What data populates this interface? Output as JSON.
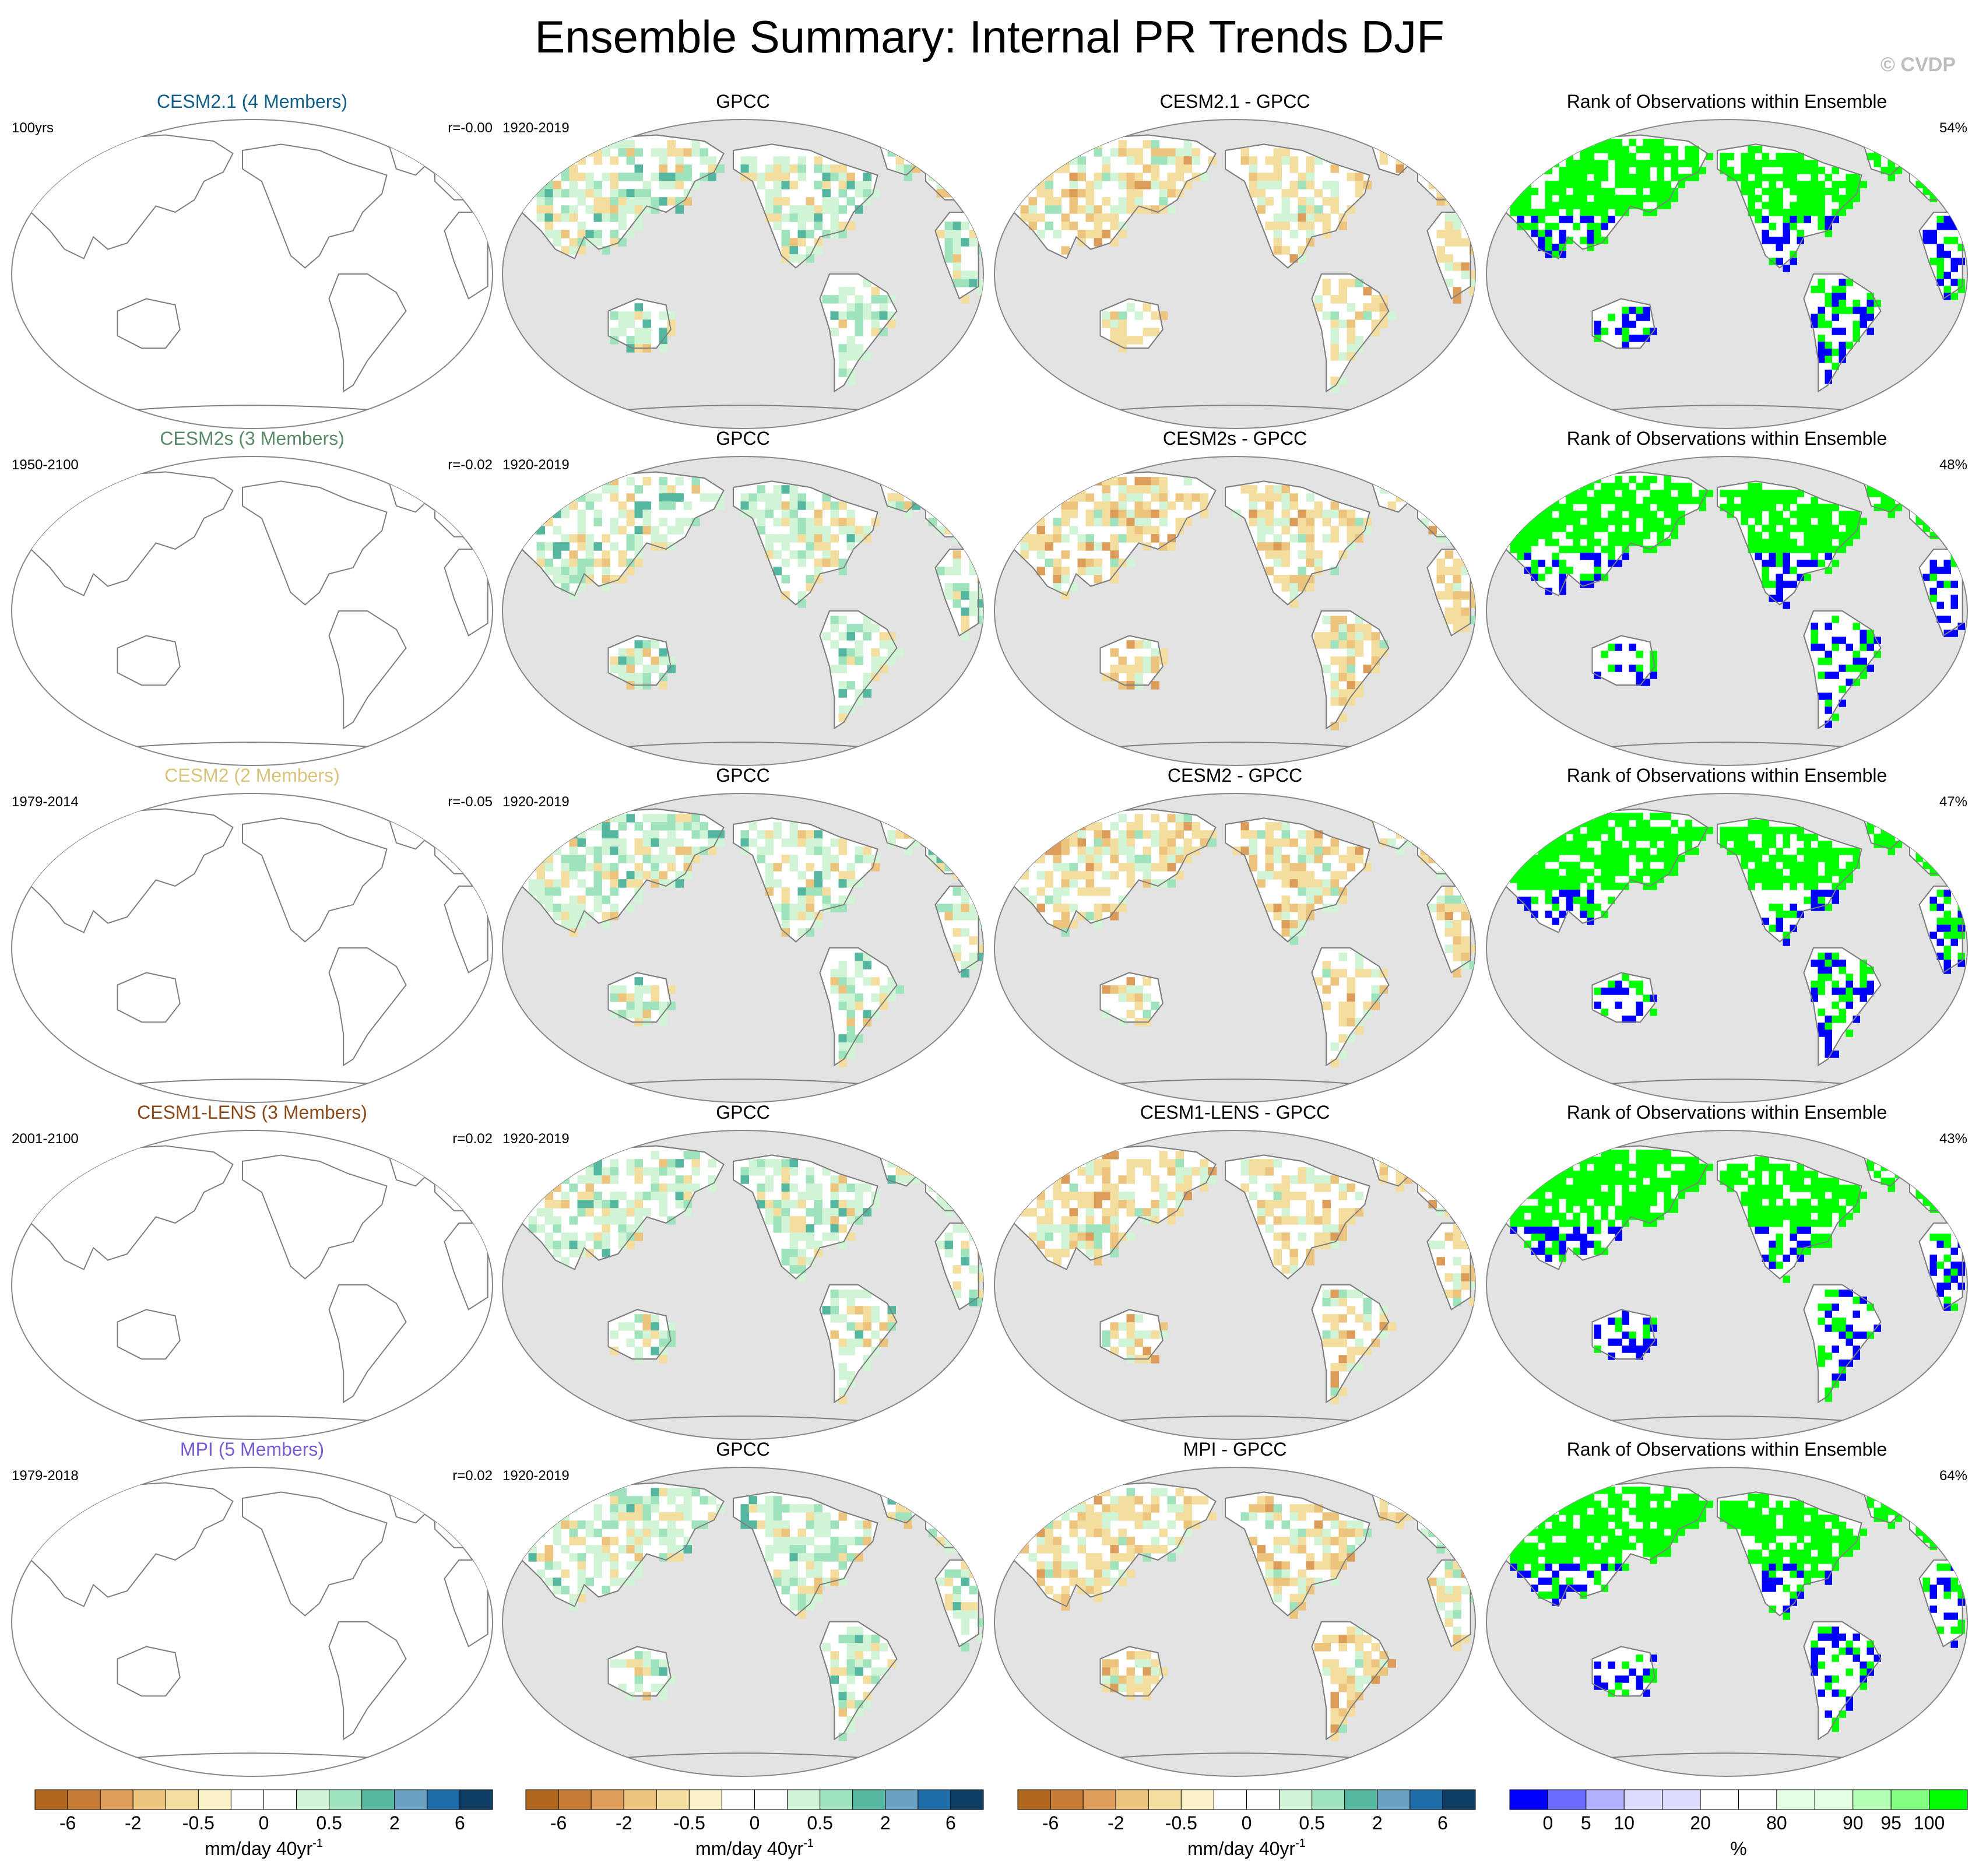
{
  "title": "Ensemble Summary: Internal PR Trends DJF",
  "watermark": "© CVDP",
  "colors": {
    "ocean_obs": "#e3e3e3",
    "coast": "#7f7f7f",
    "rank_low": "#0000ff",
    "rank_high": "#00ff00",
    "dry": "#c8873a",
    "wet": "#4aa88a"
  },
  "rows": [
    {
      "model_title": "CESM2.1 (4 Members)",
      "model_color": "#0e5f8a",
      "model_left": "100yrs",
      "model_right": "r=-0.00",
      "obs_title": "GPCC",
      "obs_left": "1920-2019",
      "diff_title": "CESM2.1 - GPCC",
      "rank_title": "Rank of Observations within Ensemble",
      "rank_right": "54%"
    },
    {
      "model_title": "CESM2s (3 Members)",
      "model_color": "#5a8a6a",
      "model_left": "1950-2100",
      "model_right": "r=-0.02",
      "obs_title": "GPCC",
      "obs_left": "1920-2019",
      "diff_title": "CESM2s - GPCC",
      "rank_title": "Rank of Observations within Ensemble",
      "rank_right": "48%"
    },
    {
      "model_title": "CESM2 (2 Members)",
      "model_color": "#d8c47a",
      "model_left": "1979-2014",
      "model_right": "r=-0.05",
      "obs_title": "GPCC",
      "obs_left": "1920-2019",
      "diff_title": "CESM2 - GPCC",
      "rank_title": "Rank of Observations within Ensemble",
      "rank_right": "47%"
    },
    {
      "model_title": "CESM1-LENS (3 Members)",
      "model_color": "#8a4a1a",
      "model_left": "2001-2100",
      "model_right": "r=0.02",
      "obs_title": "GPCC",
      "obs_left": "1920-2019",
      "diff_title": "CESM1-LENS - GPCC",
      "rank_title": "Rank of Observations within Ensemble",
      "rank_right": "43%"
    },
    {
      "model_title": "MPI (5 Members)",
      "model_color": "#7a5ad0",
      "model_left": "1979-2018",
      "model_right": "r=0.02",
      "obs_title": "GPCC",
      "obs_left": "1920-2019",
      "diff_title": "MPI - GPCC",
      "rank_title": "Rank of Observations within Ensemble",
      "rank_right": "64%"
    }
  ],
  "colorbars": [
    {
      "colors": [
        "#b0671e",
        "#c57c34",
        "#dc9c5a",
        "#ecc47e",
        "#f3dea0",
        "#fbf1c6",
        "#ffffff",
        "#ffffff",
        "#d2f4d6",
        "#9fe3bc",
        "#55b7a0",
        "#6aa1c2",
        "#1f6da8",
        "#0e3d63"
      ],
      "tick_labels": [
        "-6",
        "-2",
        "-0.5",
        "0",
        "0.5",
        "2",
        "6"
      ],
      "tick_boundaries": [
        1,
        3,
        5,
        7,
        9,
        11,
        13
      ],
      "unit_text": "mm/day 40yr",
      "unit_sup": "-1"
    },
    {
      "colors": [
        "#b0671e",
        "#c57c34",
        "#dc9c5a",
        "#ecc47e",
        "#f3dea0",
        "#fbf1c6",
        "#ffffff",
        "#ffffff",
        "#d2f4d6",
        "#9fe3bc",
        "#55b7a0",
        "#6aa1c2",
        "#1f6da8",
        "#0e3d63"
      ],
      "tick_labels": [
        "-6",
        "-2",
        "-0.5",
        "0",
        "0.5",
        "2",
        "6"
      ],
      "tick_boundaries": [
        1,
        3,
        5,
        7,
        9,
        11,
        13
      ],
      "unit_text": "mm/day 40yr",
      "unit_sup": "-1"
    },
    {
      "colors": [
        "#b0671e",
        "#c57c34",
        "#dc9c5a",
        "#ecc47e",
        "#f3dea0",
        "#fbf1c6",
        "#ffffff",
        "#ffffff",
        "#d2f4d6",
        "#9fe3bc",
        "#55b7a0",
        "#6aa1c2",
        "#1f6da8",
        "#0e3d63"
      ],
      "tick_labels": [
        "-6",
        "-2",
        "-0.5",
        "0",
        "0.5",
        "2",
        "6"
      ],
      "tick_boundaries": [
        1,
        3,
        5,
        7,
        9,
        11,
        13
      ],
      "unit_text": "mm/day 40yr",
      "unit_sup": "-1"
    },
    {
      "colors": [
        "#0000ff",
        "#6b6bff",
        "#b0b0ff",
        "#dcdcff",
        "#dcdcff",
        "#ffffff",
        "#ffffff",
        "#e4ffe4",
        "#e4ffe4",
        "#b3ffb3",
        "#80ff80",
        "#00ff00"
      ],
      "tick_labels": [
        "0",
        "5",
        "10",
        "20",
        "80",
        "90",
        "95",
        "100"
      ],
      "tick_boundaries": [
        1,
        2,
        3,
        5,
        7,
        9,
        10,
        11
      ],
      "unit_text": "%",
      "unit_sup": ""
    }
  ]
}
